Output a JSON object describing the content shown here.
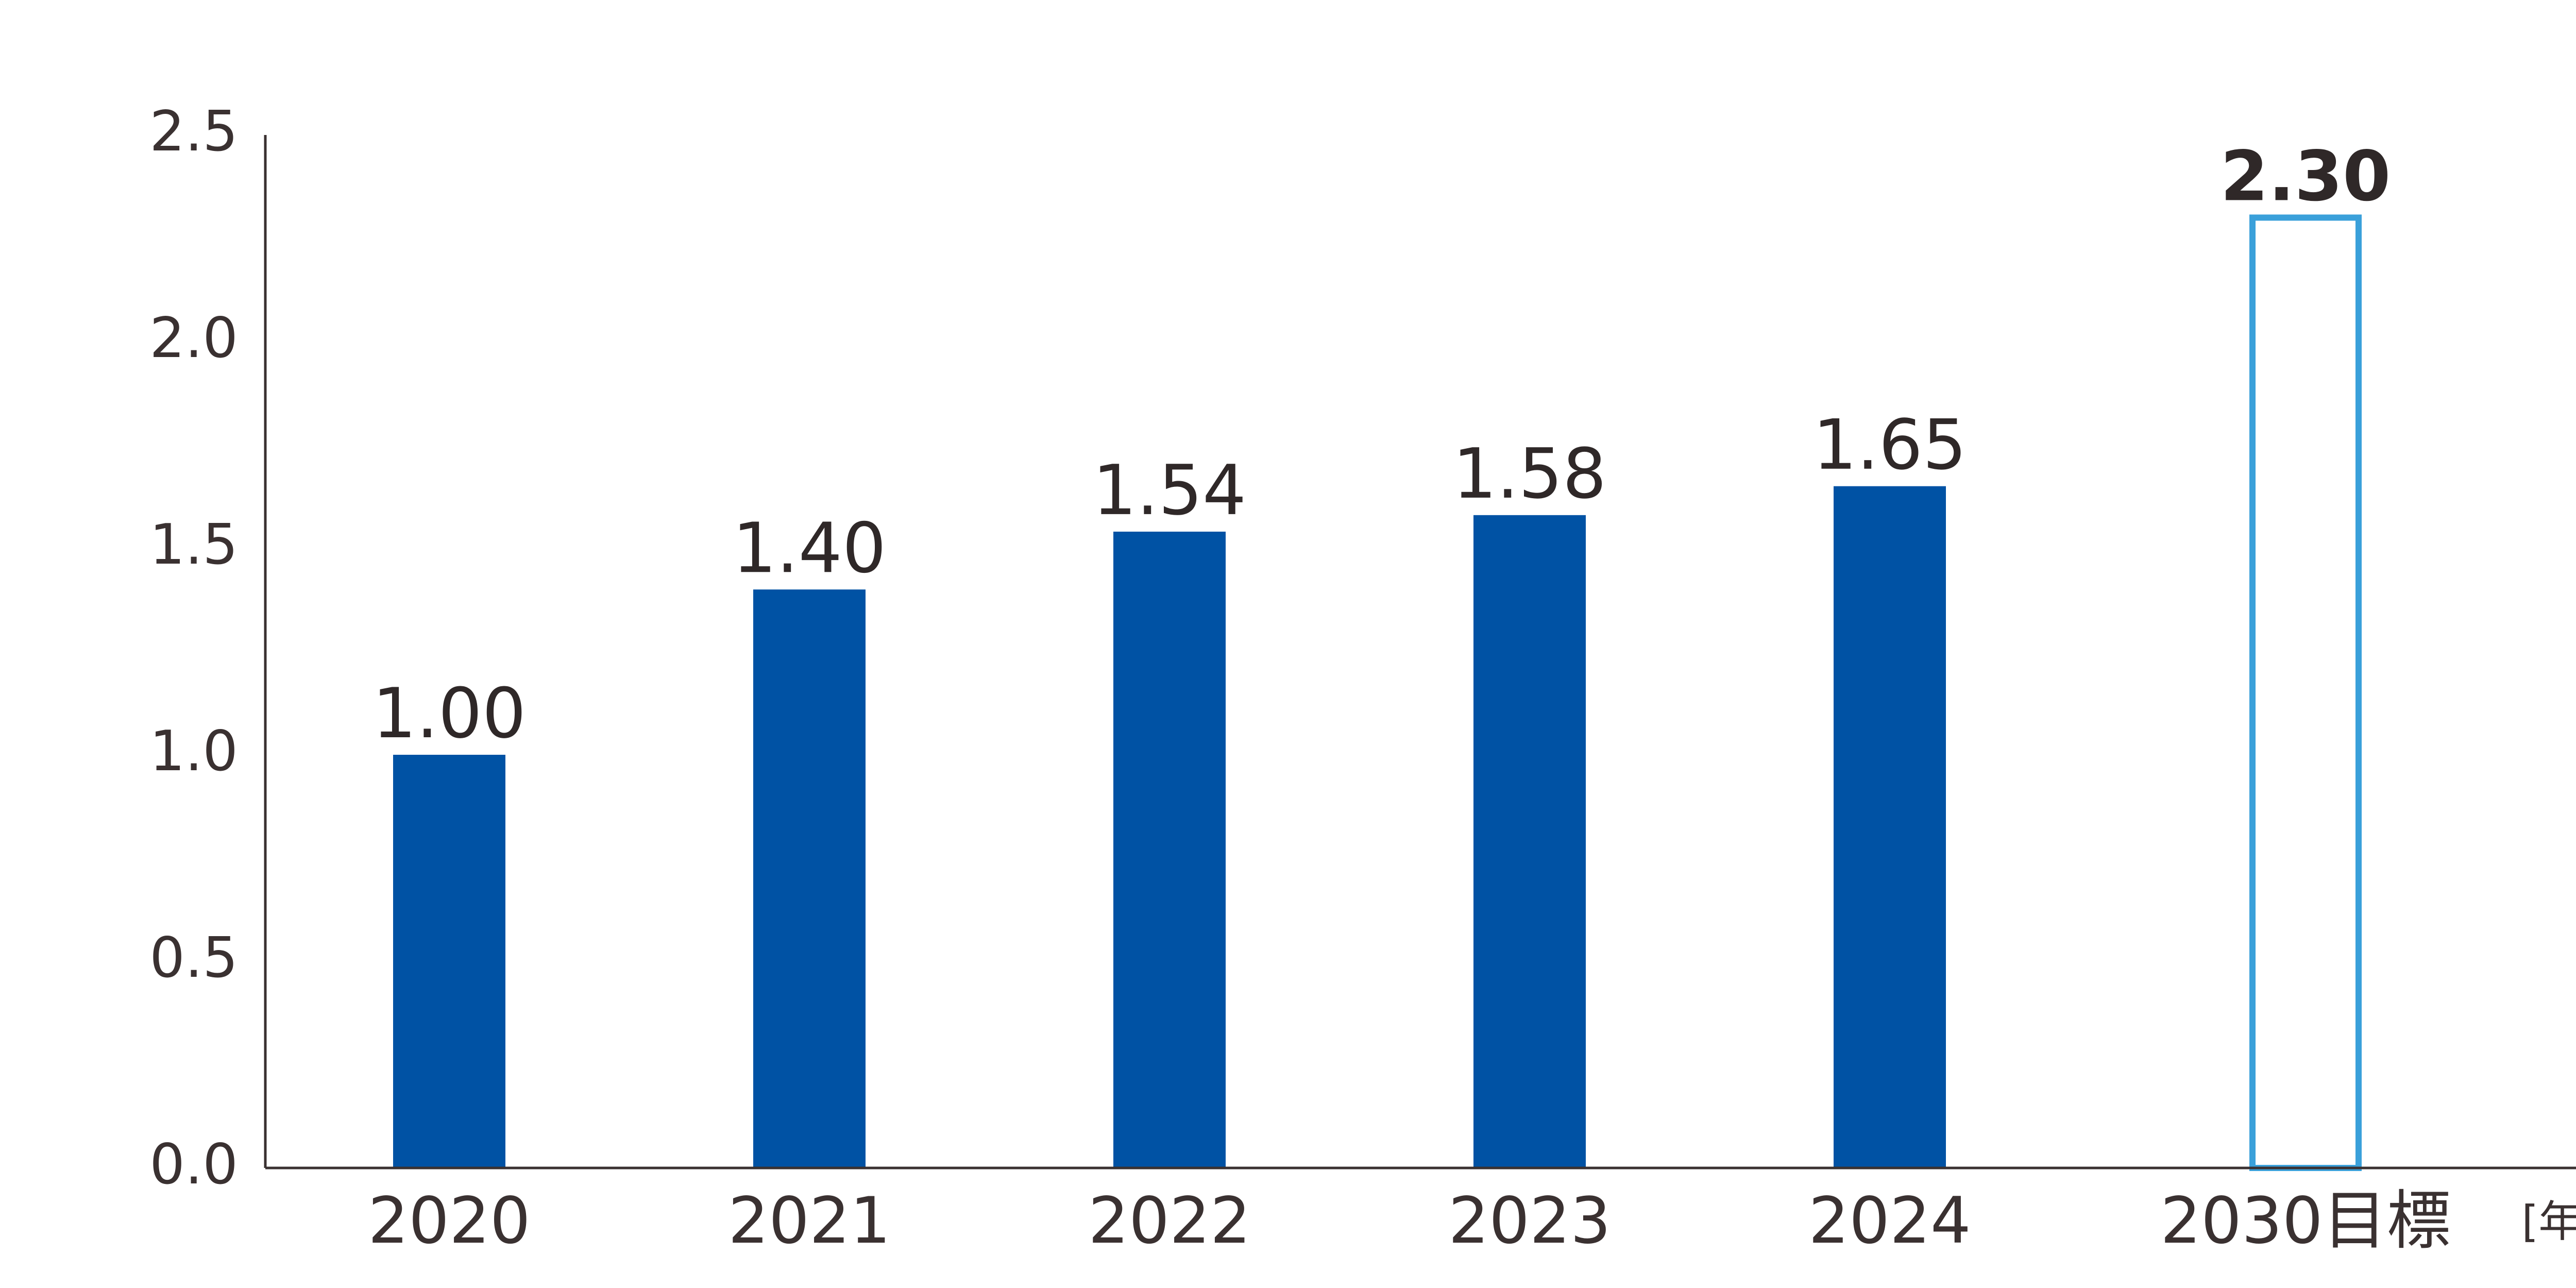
{
  "chart_data": {
    "type": "bar",
    "title": "",
    "xlabel": "",
    "ylabel": "",
    "x_unit": "[年度]",
    "categories": [
      "2020",
      "2021",
      "2022",
      "2023",
      "2024",
      "2030目標"
    ],
    "values": [
      1.0,
      1.4,
      1.54,
      1.58,
      1.65,
      2.3
    ],
    "value_labels": [
      "1.00",
      "1.40",
      "1.54",
      "1.58",
      "1.65",
      "2.30"
    ],
    "ylim": [
      0,
      2.5
    ],
    "yticks": [
      0.0,
      0.5,
      1.0,
      1.5,
      2.0,
      2.5
    ],
    "ytick_labels": [
      "0.0",
      "0.5",
      "1.0",
      "1.5",
      "2.0",
      "2.5"
    ],
    "grid": false,
    "legend": "none",
    "bar_styles": [
      "filled",
      "filled",
      "filled",
      "filled",
      "filled",
      "outline"
    ],
    "colors": {
      "bar_fill": "#0052a4",
      "target_outline": "#3aa0da",
      "target_label": "#0052a4",
      "axis": "#3a3131",
      "text": "#3a3131"
    }
  }
}
